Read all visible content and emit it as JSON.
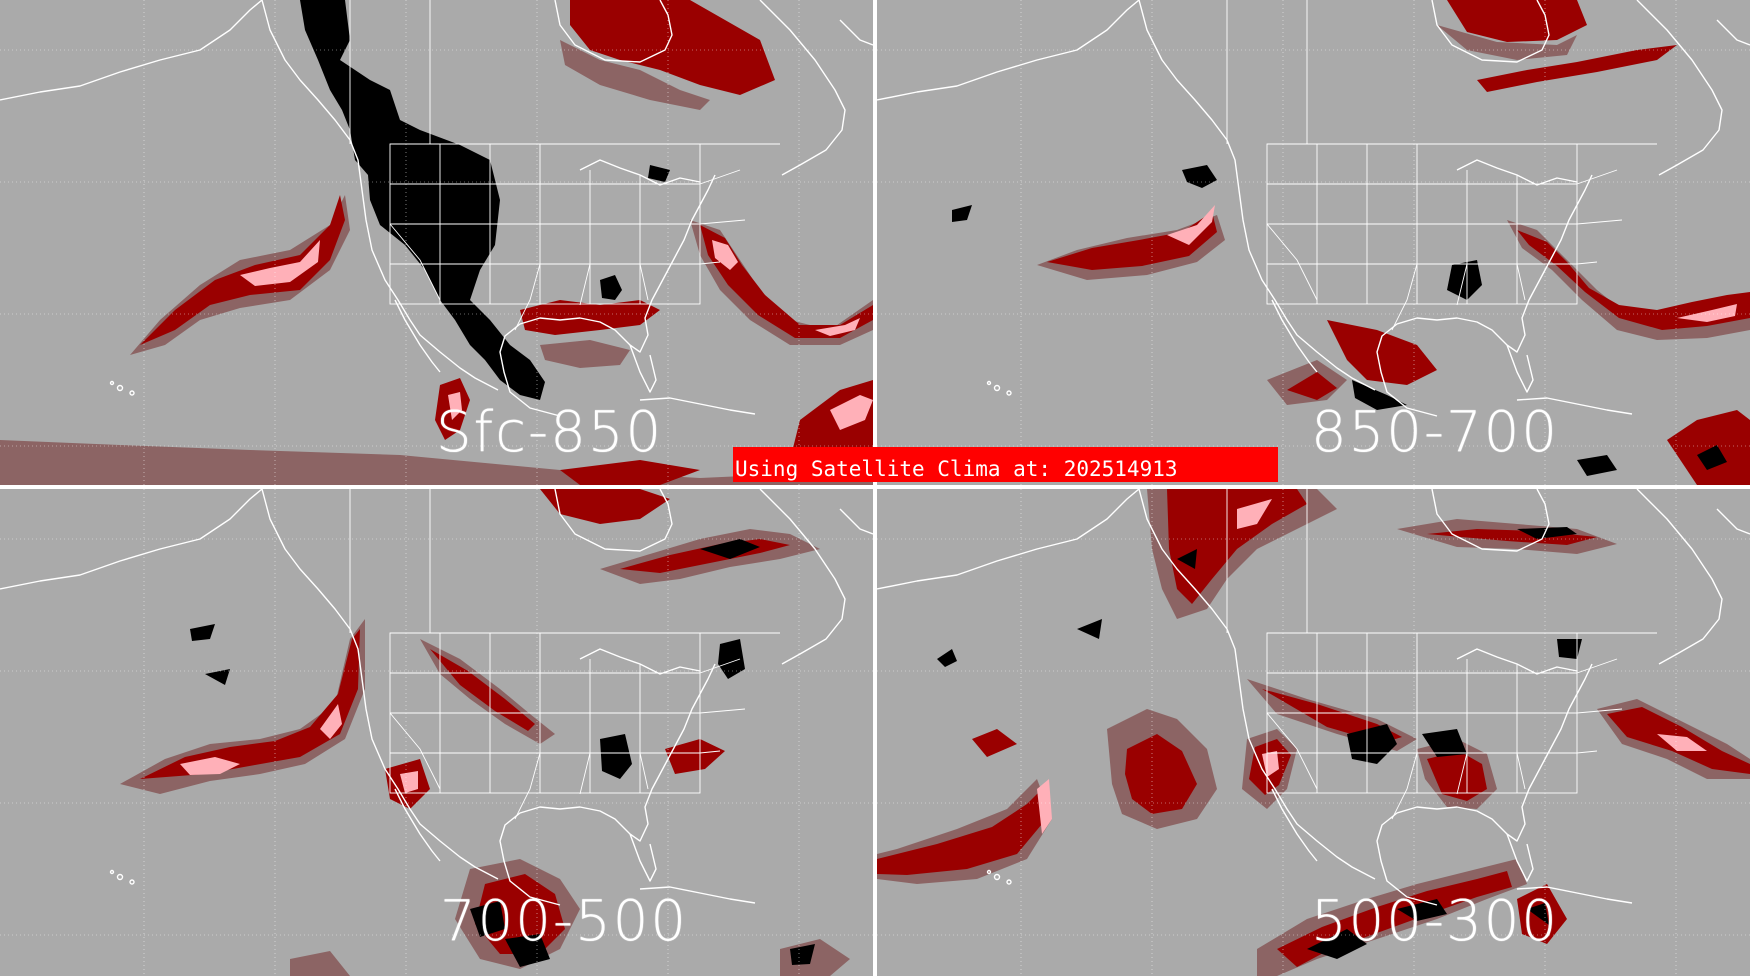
{
  "colors": {
    "background": "#aaaaaa",
    "boundaries": "#ffffff",
    "category_black": "#000000",
    "category_dark_red": "#9a0000",
    "category_red": "#cc1010",
    "category_pink": "#ffb0b8",
    "category_mauve": "#8c6464",
    "banner": "#ff0000"
  },
  "panels": [
    {
      "id": "sfc-850",
      "label": "Sfc-850"
    },
    {
      "id": "850-700",
      "label": "850-700"
    },
    {
      "id": "700-500",
      "label": "700-500"
    },
    {
      "id": "500-300",
      "label": "500-300"
    }
  ],
  "banner": {
    "text": "Using Satellite Clima at: 202514913"
  }
}
